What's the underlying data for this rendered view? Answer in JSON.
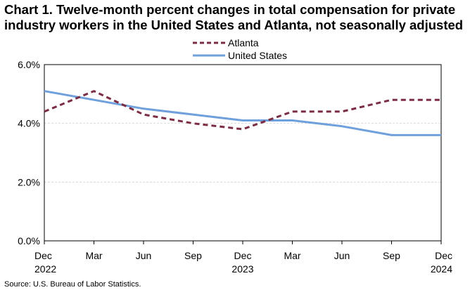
{
  "title_line1": "Chart 1. Twelve-month percent changes in total compensation for private",
  "title_line2": "industry workers in the United States and Atlanta, not seasonally adjusted",
  "source": "Source: U.S. Bureau of Labor Statistics.",
  "chart_data": {
    "type": "line",
    "title": "Chart 1. Twelve-month percent changes in total compensation for private industry workers in the United States and Atlanta, not seasonally adjusted",
    "xlabel": "",
    "ylabel": "",
    "categories": [
      "Dec 2022",
      "Mar",
      "Jun",
      "Sep",
      "Dec 2023",
      "Mar",
      "Jun",
      "Sep",
      "Dec 2024"
    ],
    "x_ticks": [
      {
        "top": "Dec",
        "bottom": "2022"
      },
      {
        "top": "Mar",
        "bottom": ""
      },
      {
        "top": "Jun",
        "bottom": ""
      },
      {
        "top": "Sep",
        "bottom": ""
      },
      {
        "top": "Dec",
        "bottom": "2023"
      },
      {
        "top": "Mar",
        "bottom": ""
      },
      {
        "top": "Jun",
        "bottom": ""
      },
      {
        "top": "Sep",
        "bottom": ""
      },
      {
        "top": "Dec",
        "bottom": "2024"
      }
    ],
    "ylim": [
      0,
      6
    ],
    "y_ticks": [
      0,
      2,
      4,
      6
    ],
    "y_tick_labels": [
      "0.0%",
      "2.0%",
      "4.0%",
      "6.0%"
    ],
    "grid": true,
    "legend_position": "top-center",
    "series": [
      {
        "name": "Atlanta",
        "style": "dashed",
        "color": "#7b2d43",
        "values": [
          4.4,
          5.1,
          4.3,
          4.0,
          3.8,
          4.4,
          4.4,
          4.8,
          4.8
        ]
      },
      {
        "name": "United States",
        "style": "solid",
        "color": "#6fa0dc",
        "values": [
          5.1,
          4.8,
          4.5,
          4.3,
          4.1,
          4.1,
          3.9,
          3.6,
          3.6
        ]
      }
    ]
  }
}
